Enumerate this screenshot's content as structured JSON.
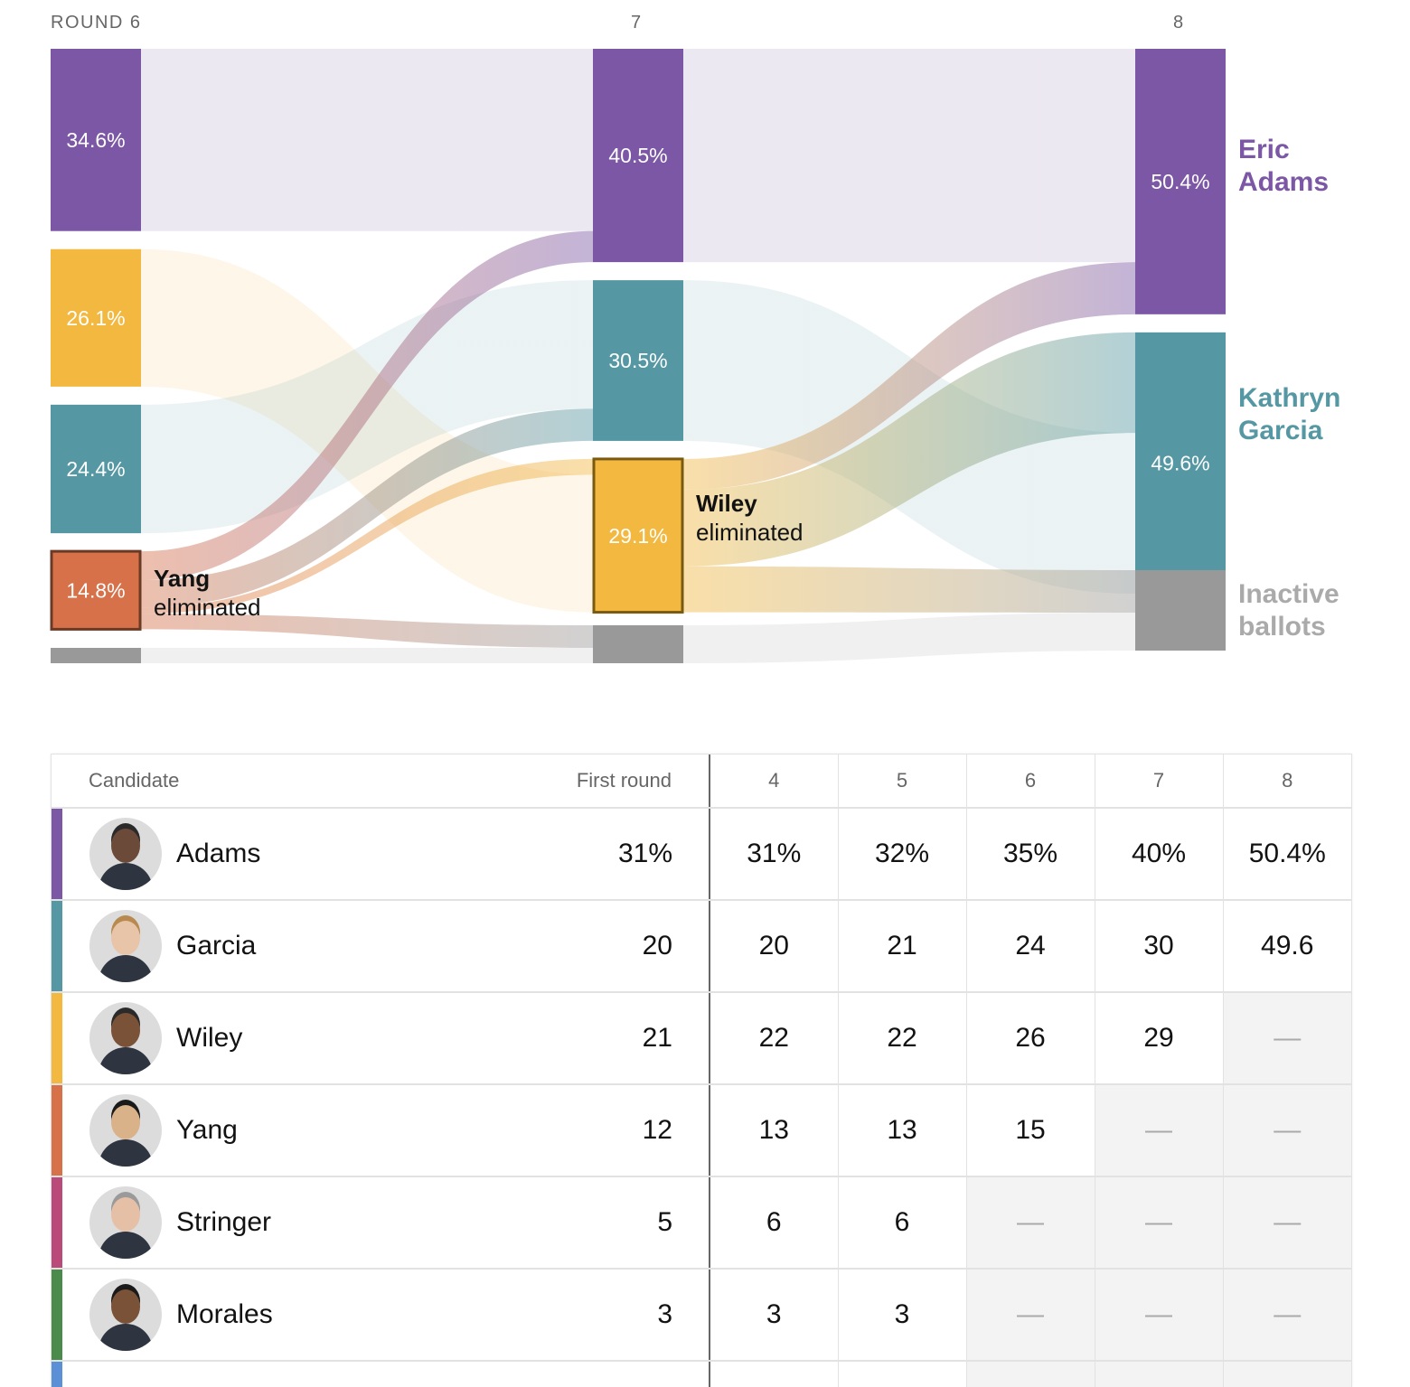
{
  "chart_data": {
    "type": "sankey",
    "rounds": [
      "6",
      "7",
      "8"
    ],
    "round_header_prefix": "ROUND",
    "round6": [
      {
        "candidate": "Adams",
        "pct": 34.6,
        "label": "34.6%"
      },
      {
        "candidate": "Wiley",
        "pct": 26.1,
        "label": "26.1%"
      },
      {
        "candidate": "Garcia",
        "pct": 24.4,
        "label": "24.4%"
      },
      {
        "candidate": "Yang",
        "pct": 14.8,
        "label": "14.8%",
        "eliminated": true
      },
      {
        "candidate": "Inactive",
        "pct": 2.9,
        "label": ""
      }
    ],
    "round7": [
      {
        "candidate": "Adams",
        "pct": 40.5,
        "label": "40.5%"
      },
      {
        "candidate": "Garcia",
        "pct": 30.5,
        "label": "30.5%"
      },
      {
        "candidate": "Wiley",
        "pct": 29.1,
        "label": "29.1%",
        "eliminated": true
      },
      {
        "candidate": "Inactive",
        "pct": 7.0,
        "label": ""
      }
    ],
    "round8": [
      {
        "candidate": "Adams",
        "pct": 50.4,
        "label": "50.4%"
      },
      {
        "candidate": "Garcia",
        "pct": 49.6,
        "label": "49.6%"
      },
      {
        "candidate": "Inactive",
        "pct": 15.0,
        "label": ""
      }
    ],
    "eliminations": {
      "round6": {
        "name": "Yang",
        "word": "eliminated"
      },
      "round7": {
        "name": "Wiley",
        "word": "eliminated"
      }
    },
    "final_labels": {
      "adams": [
        "Eric",
        "Adams"
      ],
      "garcia": [
        "Kathryn",
        "Garcia"
      ],
      "inactive": [
        "Inactive",
        "ballots"
      ]
    }
  },
  "colors": {
    "Adams": "#7b57a5",
    "Garcia": "#5598a4",
    "Wiley": "#f2b840",
    "Yang": "#d6714a",
    "Stringer": "#b94a7a",
    "Morales": "#4a8a4a",
    "Inactive": "#999999",
    "next": "#5b8fd6"
  },
  "table": {
    "headers": [
      "Candidate",
      "First round",
      "4",
      "5",
      "6",
      "7",
      "8"
    ],
    "rows": [
      {
        "name": "Adams",
        "values": [
          "31%",
          "31%",
          "32%",
          "35%",
          "40%",
          "50.4%"
        ]
      },
      {
        "name": "Garcia",
        "values": [
          "20",
          "20",
          "21",
          "24",
          "30",
          "49.6"
        ]
      },
      {
        "name": "Wiley",
        "values": [
          "21",
          "22",
          "22",
          "26",
          "29",
          "—"
        ]
      },
      {
        "name": "Yang",
        "values": [
          "12",
          "13",
          "13",
          "15",
          "—",
          "—"
        ]
      },
      {
        "name": "Stringer",
        "values": [
          "5",
          "6",
          "6",
          "—",
          "—",
          "—"
        ]
      },
      {
        "name": "Morales",
        "values": [
          "3",
          "3",
          "3",
          "—",
          "—",
          "—"
        ]
      }
    ]
  }
}
